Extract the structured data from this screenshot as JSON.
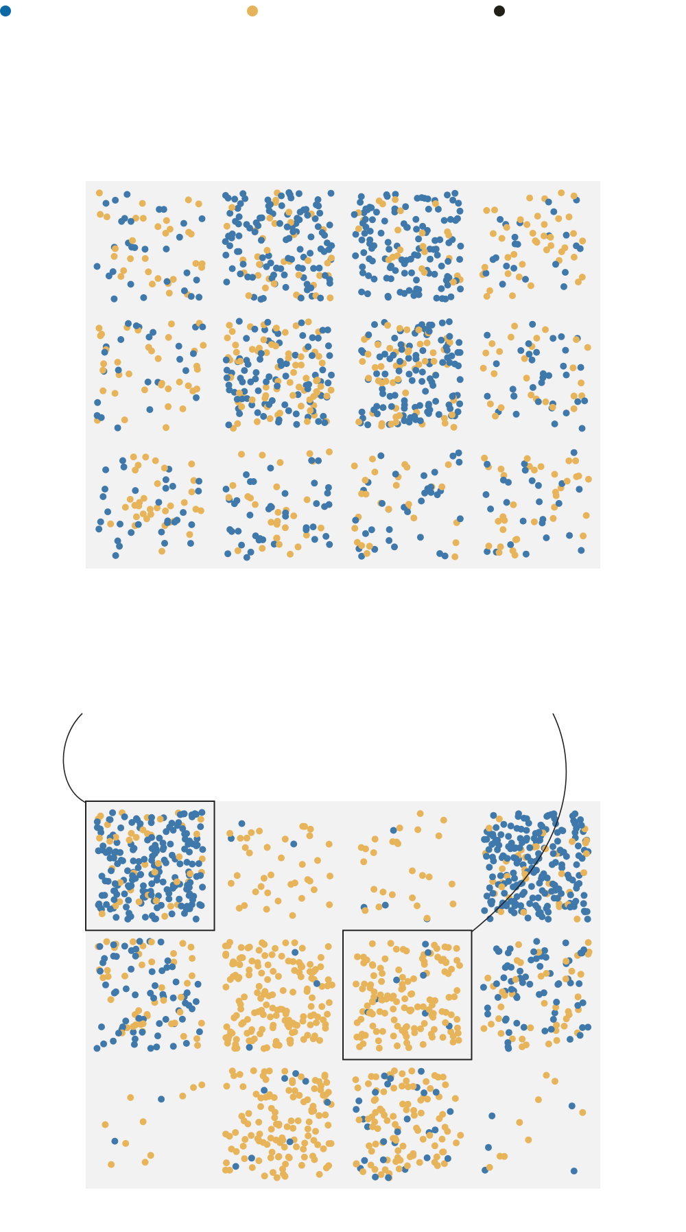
{
  "palette": {
    "blue": "#3f78aa",
    "orange": "#e8b45a",
    "panel_bg": "#f2f2f2",
    "outline": "#222222",
    "legend_blue": "#0b6aa6",
    "legend_orange": "#e7b35a",
    "legend_dark": "#222018"
  },
  "legend": {
    "items": [
      {
        "name": "legend-dot-blue",
        "color": "#0b6aa6"
      },
      {
        "name": "legend-dot-orange",
        "color": "#e7b35a"
      },
      {
        "name": "legend-dot-dark",
        "color": "#222018"
      }
    ]
  },
  "grids": [
    {
      "name": "top-grid",
      "rows": 3,
      "cols": 4,
      "cells": [
        {
          "n": 60,
          "blue": 0.5
        },
        {
          "n": 150,
          "blue": 0.75
        },
        {
          "n": 145,
          "blue": 0.8
        },
        {
          "n": 65,
          "blue": 0.5
        },
        {
          "n": 60,
          "blue": 0.5
        },
        {
          "n": 160,
          "blue": 0.55
        },
        {
          "n": 165,
          "blue": 0.55
        },
        {
          "n": 60,
          "blue": 0.55
        },
        {
          "n": 65,
          "blue": 0.5
        },
        {
          "n": 70,
          "blue": 0.5
        },
        {
          "n": 60,
          "blue": 0.5
        },
        {
          "n": 60,
          "blue": 0.45
        }
      ],
      "highlighted": []
    },
    {
      "name": "bottom-grid",
      "rows": 3,
      "cols": 4,
      "cells": [
        {
          "n": 230,
          "blue": 0.8
        },
        {
          "n": 40,
          "blue": 0.15
        },
        {
          "n": 30,
          "blue": 0.2
        },
        {
          "n": 240,
          "blue": 0.85
        },
        {
          "n": 110,
          "blue": 0.6
        },
        {
          "n": 160,
          "blue": 0.02
        },
        {
          "n": 140,
          "blue": 0.04
        },
        {
          "n": 110,
          "blue": 0.6
        },
        {
          "n": 12,
          "blue": 0.2
        },
        {
          "n": 130,
          "blue": 0.08
        },
        {
          "n": 125,
          "blue": 0.15
        },
        {
          "n": 14,
          "blue": 0.2
        }
      ],
      "highlighted": [
        0,
        6
      ]
    }
  ]
}
